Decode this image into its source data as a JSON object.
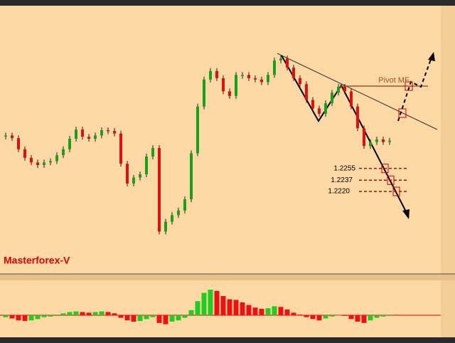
{
  "chart_data": [
    {
      "type": "candle",
      "values": [
        1.2305,
        1.2301,
        1.2284,
        1.2271,
        1.2264,
        1.226,
        1.2264,
        1.2266,
        1.2275,
        1.2284,
        1.23,
        1.2314,
        1.2303,
        1.23,
        1.2305,
        1.2313,
        1.2312,
        1.2308,
        1.2262,
        1.2232,
        1.2241,
        1.2246,
        1.2273,
        1.2286,
        1.2159,
        1.2174,
        1.2184,
        1.2191,
        1.2208,
        1.2278,
        1.2349,
        1.239,
        1.2403,
        1.2392,
        1.2372,
        1.2365,
        1.2397,
        1.2397,
        1.2392,
        1.239,
        1.2386,
        1.2397,
        1.2419,
        1.2422,
        1.2408,
        1.2392,
        1.2383,
        1.2359,
        1.2346,
        1.2338,
        1.2354,
        1.237,
        1.2379,
        1.2372,
        1.2349,
        1.2316,
        1.2289,
        1.2295,
        1.2299,
        1.2295,
        1.2297
      ],
      "up_color": "#1aa01a",
      "down_color": "#e01010",
      "ylim": [
        1.21,
        1.25
      ],
      "levels": [
        {
          "value": 1.2255,
          "label": "1.2255"
        },
        {
          "value": 1.2237,
          "label": "1.2237"
        },
        {
          "value": 1.222,
          "label": "1.2220"
        }
      ],
      "annotation": "Pivot MF",
      "watermark": "Masterforex-V"
    },
    {
      "type": "histogram",
      "values": [
        -3,
        -5,
        -8,
        -9,
        -8,
        -6,
        -3,
        -2,
        1,
        3,
        5,
        6,
        5,
        4,
        5,
        6,
        5,
        3,
        -4,
        -8,
        -10,
        -9,
        -6,
        -3,
        -12,
        -14,
        -10,
        -8,
        -4,
        8,
        22,
        35,
        40,
        38,
        30,
        25,
        24,
        20,
        16,
        12,
        10,
        11,
        14,
        13,
        9,
        4,
        1,
        -3,
        -6,
        -8,
        -5,
        -2,
        0,
        -1,
        -6,
        -10,
        -12,
        -8,
        -4,
        -2,
        -1
      ],
      "up_color": "#22cc22",
      "down_color": "#ee1111",
      "ylim": [
        -30,
        50
      ]
    }
  ]
}
